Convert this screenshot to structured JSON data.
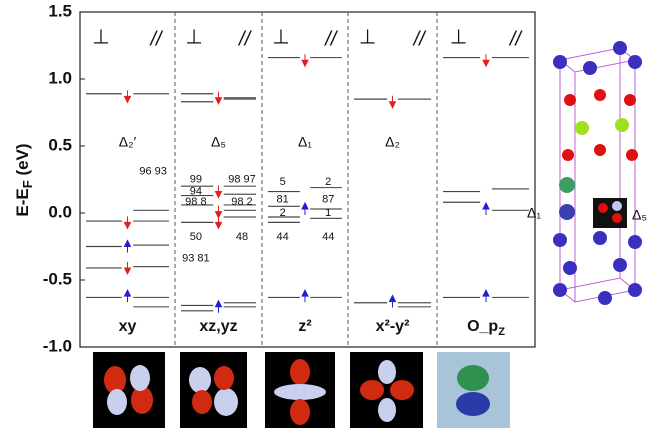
{
  "chart_data": {
    "type": "energy-levels",
    "ylabel": "E-E",
    "ylabel_sub": "F",
    "ylabel_unit": " (eV)",
    "ylim": [
      -1.0,
      1.5
    ],
    "yticks": [
      {
        "value": -1.0,
        "label": "-1.0"
      },
      -0.5,
      {
        "value": 0.0,
        "label": "0.0"
      },
      0.5,
      {
        "value": 1.0,
        "label": "1.0"
      },
      1.5
    ],
    "side_labels": [
      "⊥",
      "//"
    ],
    "panels": [
      {
        "name": "xy",
        "delta": "Δ₂′",
        "perp": [
          0.89,
          -0.06,
          -0.25,
          -0.41,
          -0.63
        ],
        "para": [
          0.89,
          0.02,
          -0.06,
          -0.24,
          -0.4,
          -0.63,
          -0.7
        ],
        "spins": [
          {
            "e": 0.87,
            "color": "#e02020",
            "dir": "down"
          },
          {
            "e": -0.07,
            "color": "#e02020",
            "dir": "down"
          },
          {
            "e": -0.25,
            "color": "#2020d0",
            "dir": "up"
          },
          {
            "e": -0.41,
            "color": "#e02020",
            "dir": "down"
          },
          {
            "e": -0.62,
            "color": "#2020d0",
            "dir": "up"
          }
        ],
        "annotations": [
          {
            "text": "96 93",
            "e": 0.31,
            "side": "para"
          }
        ]
      },
      {
        "name": "xz,yz",
        "delta": "Δ₅",
        "perp": [
          0.89,
          0.83,
          0.2,
          0.13,
          0.06,
          -0.07,
          -0.69,
          -0.73
        ],
        "para": [
          0.86,
          0.85,
          0.2,
          0.14,
          0.06,
          0.02,
          -0.03,
          -0.67,
          -0.7
        ],
        "spins": [
          {
            "e": 0.86,
            "color": "#e02020",
            "dir": "down"
          },
          {
            "e": 0.16,
            "color": "#e02020",
            "dir": "down"
          },
          {
            "e": 0.01,
            "color": "#e02020",
            "dir": "down"
          },
          {
            "e": -0.07,
            "color": "#e02020",
            "dir": "down"
          },
          {
            "e": -0.7,
            "color": "#2020d0",
            "dir": "up"
          }
        ],
        "annotations": [
          {
            "text": "99",
            "e": 0.25,
            "side": "perp"
          },
          {
            "text": "94",
            "e": 0.16,
            "side": "perp"
          },
          {
            "text": "98 8",
            "e": 0.08,
            "side": "perp"
          },
          {
            "text": "50",
            "e": -0.18,
            "side": "perp"
          },
          {
            "text": "93 81",
            "e": -0.34,
            "side": "perp"
          },
          {
            "text": "98 97",
            "e": 0.25,
            "side": "para"
          },
          {
            "text": "98 2",
            "e": 0.08,
            "side": "para"
          },
          {
            "text": "48",
            "e": -0.18,
            "side": "para"
          }
        ]
      },
      {
        "name": "z²",
        "delta": "Δ₁",
        "perp": [
          1.16,
          0.16,
          0.05,
          -0.03,
          -0.07,
          -0.63
        ],
        "para": [
          1.16,
          0.19,
          0.03,
          -0.04,
          -0.63
        ],
        "spins": [
          {
            "e": 1.14,
            "color": "#e02020",
            "dir": "down"
          },
          {
            "e": 0.03,
            "color": "#2020d0",
            "dir": "up"
          },
          {
            "e": -0.62,
            "color": "#2020d0",
            "dir": "up"
          }
        ],
        "annotations": [
          {
            "text": "5",
            "e": 0.23,
            "side": "perp"
          },
          {
            "text": "81",
            "e": 0.1,
            "side": "perp"
          },
          {
            "text": "2",
            "e": 0.0,
            "side": "perp"
          },
          {
            "text": "44",
            "e": -0.18,
            "side": "perp"
          },
          {
            "text": "2",
            "e": 0.23,
            "side": "para"
          },
          {
            "text": "87",
            "e": 0.1,
            "side": "para"
          },
          {
            "text": "1",
            "e": 0.0,
            "side": "para"
          },
          {
            "text": "44",
            "e": -0.18,
            "side": "para"
          }
        ]
      },
      {
        "name": "x²-y²",
        "delta": "Δ₂",
        "perp": [
          0.85,
          -0.67
        ],
        "para": [
          0.85,
          -0.67,
          -0.7
        ],
        "spins": [
          {
            "e": 0.83,
            "color": "#e02020",
            "dir": "down"
          },
          {
            "e": -0.66,
            "color": "#2020d0",
            "dir": "up"
          }
        ],
        "annotations": []
      },
      {
        "name": "O_p",
        "name_sub": "Z",
        "delta": "",
        "perp": [
          1.16,
          0.16,
          0.08,
          -0.63
        ],
        "para": [
          1.16,
          0.18,
          0.02,
          -0.63
        ],
        "spins": [
          {
            "e": 1.14,
            "color": "#e02020",
            "dir": "down"
          },
          {
            "e": 0.03,
            "color": "#2020d0",
            "dir": "up"
          },
          {
            "e": -0.62,
            "color": "#2020d0",
            "dir": "up"
          }
        ],
        "annotations": []
      }
    ],
    "structure_labels": [
      "Δ₁",
      "Δ₅"
    ]
  }
}
